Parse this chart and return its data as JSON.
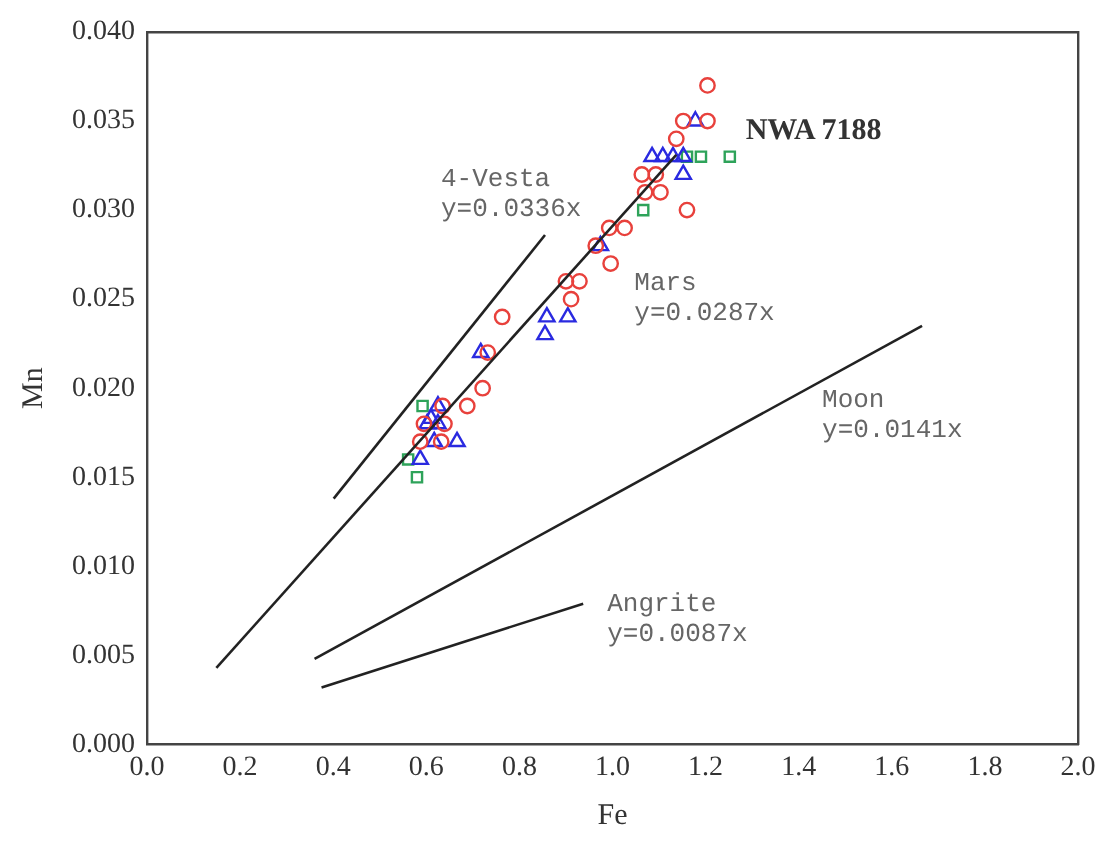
{
  "chart_data": {
    "type": "scatter",
    "xlabel": "Fe",
    "ylabel": "Mn",
    "xlim": [
      0,
      2
    ],
    "xticks": [
      {
        "value": 0,
        "label": "0.0"
      },
      {
        "value": 0.2,
        "label": "0.2"
      },
      {
        "value": 0.4,
        "label": "0.4"
      },
      {
        "value": 0.6,
        "label": "0.6"
      },
      {
        "value": 0.8,
        "label": "0.8"
      },
      {
        "value": 1,
        "label": "1.0"
      },
      {
        "value": 1.2,
        "label": "1.2"
      },
      {
        "value": 1.4,
        "label": "1.4"
      },
      {
        "value": 1.6,
        "label": "1.6"
      },
      {
        "value": 1.8,
        "label": "1.8"
      },
      {
        "value": 2,
        "label": "2.0"
      }
    ],
    "ylim": [
      0,
      0.04
    ],
    "yticks": [
      {
        "value": 0,
        "label": "0.000"
      },
      {
        "value": 0.005,
        "label": "0.005"
      },
      {
        "value": 0.01,
        "label": "0.010"
      },
      {
        "value": 0.015,
        "label": "0.015"
      },
      {
        "value": 0.02,
        "label": "0.020"
      },
      {
        "value": 0.025,
        "label": "0.025"
      },
      {
        "value": 0.03,
        "label": "0.030"
      },
      {
        "value": 0.035,
        "label": "0.035"
      },
      {
        "value": 0.04,
        "label": "0.040"
      }
    ],
    "grid": false,
    "legend": false,
    "series": [
      {
        "type": "line",
        "name": "4-Vesta y=0.0336x",
        "color": "#222222",
        "marker": "none",
        "x": [
          0.401,
          0.855
        ],
        "values": [
          0.0138,
          0.0286
        ]
      },
      {
        "type": "line",
        "name": "Mars y=0.0287x",
        "color": "#222222",
        "marker": "none",
        "x": [
          0.149,
          1.137
        ],
        "values": [
          0.0043,
          0.0331
        ]
      },
      {
        "type": "line",
        "name": "Moon y=0.0141x",
        "color": "#222222",
        "marker": "none",
        "x": [
          0.36,
          1.665
        ],
        "values": [
          0.0048,
          0.0235
        ]
      },
      {
        "type": "line",
        "name": "Angrite y=0.0087x",
        "color": "#222222",
        "marker": "none",
        "x": [
          0.375,
          0.937
        ],
        "values": [
          0.0032,
          0.0079
        ]
      },
      {
        "color": "#e8413c",
        "marker": "circle",
        "x": [
          1.204,
          1.152,
          1.204,
          1.137,
          1.063,
          1.093,
          1.07,
          1.103,
          1.16,
          0.993,
          1.026,
          0.964,
          0.996,
          0.9,
          0.929,
          0.911,
          0.763,
          0.732,
          0.721,
          0.688,
          0.635,
          0.595,
          0.639,
          0.587,
          0.632
        ],
        "values": [
          0.037,
          0.035,
          0.035,
          0.034,
          0.032,
          0.032,
          0.031,
          0.031,
          0.03,
          0.029,
          0.029,
          0.028,
          0.027,
          0.026,
          0.026,
          0.025,
          0.024,
          0.022,
          0.02,
          0.019,
          0.019,
          0.018,
          0.018,
          0.017,
          0.017
        ]
      },
      {
        "color": "#2a2ae0",
        "marker": "triangle",
        "x": [
          1.178,
          1.085,
          1.108,
          1.13,
          1.152,
          1.152,
          0.974,
          0.859,
          0.904,
          0.855,
          0.717,
          0.625,
          0.61,
          0.602,
          0.625,
          0.617,
          0.666,
          0.587
        ],
        "values": [
          0.035,
          0.033,
          0.033,
          0.033,
          0.033,
          0.032,
          0.028,
          0.024,
          0.024,
          0.023,
          0.022,
          0.019,
          0.0183,
          0.018,
          0.018,
          0.017,
          0.017,
          0.016
        ]
      },
      {
        "color": "#2ea35a",
        "marker": "square",
        "x": [
          1.16,
          1.19,
          1.252,
          1.066,
          0.592,
          0.561,
          0.58
        ],
        "values": [
          0.033,
          0.033,
          0.033,
          0.03,
          0.019,
          0.016,
          0.015
        ]
      }
    ],
    "annotations": [
      "NWA 7188"
    ]
  }
}
